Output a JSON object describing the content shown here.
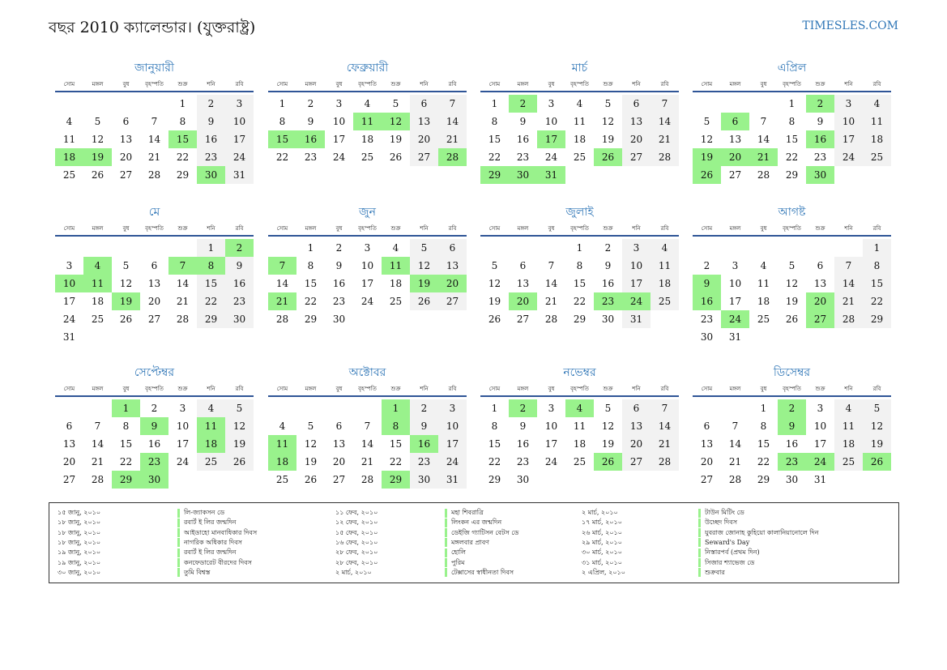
{
  "header": {
    "title": "বছর 2010 ক্যালেন্ডার। (যুক্তরাষ্ট্র)",
    "site": "TIMESLES.COM"
  },
  "weekdays": [
    "সোম",
    "মঙ্গল",
    "বুধ",
    "বৃহস্পতি",
    "শুক্র",
    "শনি",
    "রবি"
  ],
  "colors": {
    "holiday": "#99f28c",
    "weekend": "#f2f2f2",
    "accent": "#2e75b6"
  },
  "months": [
    {
      "name": "জানুয়ারী",
      "start": 4,
      "days": 31,
      "holidays": [
        15,
        18,
        19,
        30
      ]
    },
    {
      "name": "ফেব্রুয়ারী",
      "start": 0,
      "days": 28,
      "holidays": [
        11,
        12,
        15,
        16,
        28
      ]
    },
    {
      "name": "মার্চ",
      "start": 0,
      "days": 31,
      "holidays": [
        2,
        17,
        26,
        29,
        30,
        31
      ]
    },
    {
      "name": "এপ্রিল",
      "start": 3,
      "days": 30,
      "holidays": [
        2,
        6,
        16,
        19,
        20,
        21,
        26,
        30
      ]
    },
    {
      "name": "মে",
      "start": 5,
      "days": 31,
      "holidays": [
        2,
        4,
        7,
        8,
        10,
        11,
        19
      ]
    },
    {
      "name": "জুন",
      "start": 1,
      "days": 30,
      "holidays": [
        7,
        11,
        19,
        20,
        21
      ]
    },
    {
      "name": "জুলাই",
      "start": 3,
      "days": 31,
      "holidays": [
        20,
        23,
        24
      ]
    },
    {
      "name": "আগষ্ট",
      "start": 6,
      "days": 31,
      "holidays": [
        9,
        16,
        20,
        24,
        27
      ]
    },
    {
      "name": "সেপ্টেম্বর",
      "start": 2,
      "days": 30,
      "holidays": [
        1,
        9,
        11,
        18,
        23,
        29,
        30
      ]
    },
    {
      "name": "অক্টোবর",
      "start": 4,
      "days": 31,
      "holidays": [
        1,
        8,
        11,
        16,
        18,
        29
      ]
    },
    {
      "name": "নভেম্বর",
      "start": 0,
      "days": 30,
      "holidays": [
        2,
        4,
        26
      ]
    },
    {
      "name": "ডিসেম্বর",
      "start": 2,
      "days": 31,
      "holidays": [
        2,
        9,
        23,
        24,
        26
      ]
    }
  ],
  "holiday_list": [
    [
      {
        "date": "১৫ জানু, ২০১০",
        "name": "লি-জ্যাকসন ডে"
      },
      {
        "date": "১৮ জানু, ২০১০",
        "name": "রবার্ট ই লির জন্মদিন"
      },
      {
        "date": "১৮ জানু, ২০১০",
        "name": "আইডাহো মানবাধিকার দিবস"
      },
      {
        "date": "১৮ জানু, ২০১০",
        "name": "নাগরিক অধিকার দিবস"
      },
      {
        "date": "১৯ জানু, ২০১০",
        "name": "রবার্ট ই লির জন্মদিন"
      },
      {
        "date": "১৯ জানু, ২০১০",
        "name": "কনফেডারেট বীরদের দিবস"
      },
      {
        "date": "৩০ জানু, ২০১০",
        "name": "তুমি বিশ্বস্ত"
      }
    ],
    [
      {
        "date": "১১ ফেব, ২০১০",
        "name": "মহা শিবরাত্রি"
      },
      {
        "date": "১২ ফেব, ২০১০",
        "name": "লিংকন এর জন্মদিন"
      },
      {
        "date": "১৫ ফেব, ২০১০",
        "name": "ডেইজি গ্যাটিসন বেটস ডে"
      },
      {
        "date": "১৬ ফেব, ২০১০",
        "name": "মঙ্গলবার প্রাবণ"
      },
      {
        "date": "২৮ ফেব, ২০১০",
        "name": "হোলি"
      },
      {
        "date": "২৮ ফেব, ২০১০",
        "name": "পুরিম"
      },
      {
        "date": "২ মার্চ, ২০১০",
        "name": "টেক্সাসের স্বাধীনতা দিবস"
      }
    ],
    [
      {
        "date": "২ মার্চ, ২০১০",
        "name": "টাউন মিটিং ডে"
      },
      {
        "date": "১৭ মার্চ, ২০১০",
        "name": "উচ্ছেদ দিবস"
      },
      {
        "date": "২৬ মার্চ, ২০১০",
        "name": "যুবরাজ জোনাহ কুহিয়ো কালানিয়ানোলে দিন"
      },
      {
        "date": "২৯ মার্চ, ২০১০",
        "name": "Seward's Day"
      },
      {
        "date": "৩০ মার্চ, ২০১০",
        "name": "নিস্তারপর্ব (প্রথম দিন)"
      },
      {
        "date": "৩১ মার্চ, ২০১০",
        "name": "সিজার শ্যাভেজ ডে"
      },
      {
        "date": "২ এপ্রিল, ২০১০",
        "name": "শুক্রবার"
      }
    ]
  ]
}
